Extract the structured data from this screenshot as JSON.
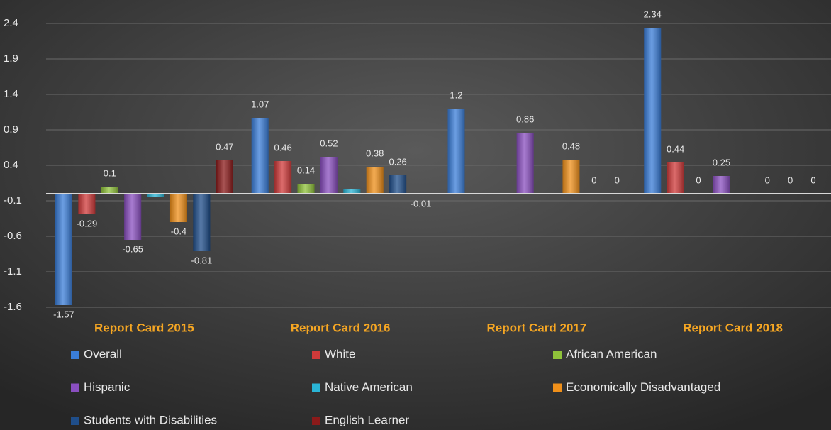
{
  "chart_data": {
    "type": "bar",
    "categories": [
      "Report Card 2015",
      "Report Card 2016",
      "Report Card 2017",
      "Report Card 2018"
    ],
    "series": [
      {
        "name": "Overall",
        "color": "#3a7dd8",
        "values": [
          -1.57,
          1.07,
          1.2,
          2.34
        ]
      },
      {
        "name": "White",
        "color": "#d03a3a",
        "values": [
          -0.29,
          0.46,
          null,
          0.44
        ]
      },
      {
        "name": "African American",
        "color": "#8fc23a",
        "values": [
          0.1,
          0.14,
          null,
          0
        ]
      },
      {
        "name": "Hispanic",
        "color": "#8a4fc0",
        "values": [
          -0.65,
          0.52,
          0.86,
          0.25
        ]
      },
      {
        "name": "Native American",
        "color": "#2ab5d6",
        "values": [
          -0.05,
          0.06,
          null,
          null
        ],
        "data_labels": false
      },
      {
        "name": "Economically Disadvantaged",
        "color": "#f0901a",
        "values": [
          -0.4,
          0.38,
          0.48,
          0
        ]
      },
      {
        "name": "Students with Disabilities",
        "color": "#1f4e8a",
        "values": [
          -0.81,
          0.26,
          0,
          0
        ]
      },
      {
        "name": "English Learner",
        "color": "#8b1a1a",
        "values": [
          0.47,
          -0.01,
          0,
          0
        ]
      }
    ],
    "ylim": [
      -1.77,
      2.73
    ],
    "yticks": [
      -1.6,
      -1.1,
      -0.6,
      -0.1,
      0.4,
      0.9,
      1.4,
      1.9,
      2.4
    ],
    "grid": true,
    "legend": "bottom"
  }
}
